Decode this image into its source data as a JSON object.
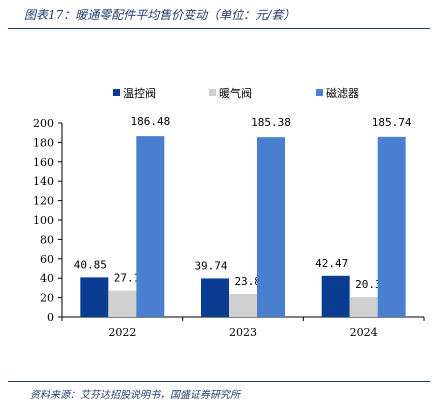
{
  "title": "图表17：暖通零配件平均售价变动（单位：元/套）",
  "source": "资料来源：艾芬达招股说明书，国盛证券研究所",
  "chart_data": {
    "type": "bar",
    "categories": [
      "2022",
      "2023",
      "2024"
    ],
    "series": [
      {
        "name": "温控阀",
        "values": [
          40.85,
          39.74,
          42.47
        ],
        "color": "#0a3d91"
      },
      {
        "name": "暖气阀",
        "values": [
          27.11,
          23.81,
          20.39
        ],
        "color": "#d0d0d0"
      },
      {
        "name": "磁滤器",
        "values": [
          186.48,
          185.38,
          185.74
        ],
        "color": "#4a7fd0"
      }
    ],
    "data_labels": [
      [
        "40.85",
        "39.74",
        "42.47"
      ],
      [
        "27.11",
        "23.81",
        "20.39"
      ],
      [
        "186.48",
        "185.38",
        "185.74"
      ]
    ],
    "ylim": [
      0,
      200
    ],
    "yticks": [
      0,
      20,
      40,
      60,
      80,
      100,
      120,
      140,
      160,
      180,
      200
    ],
    "legend_position": "top-center",
    "grid": false
  }
}
